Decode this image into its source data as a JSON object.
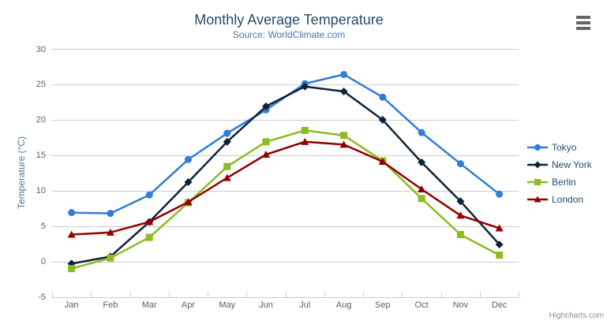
{
  "header": {
    "title": "Monthly Average Temperature",
    "subtitle": "Source: WorldClimate.com"
  },
  "toolbar": {
    "export_menu_icon": "hamburger-icon"
  },
  "credits": {
    "label": "Highcharts.com"
  },
  "theme": {
    "background": "#ffffff",
    "title_color": "#274b6d",
    "subtitle_color": "#4d759e",
    "axis_label_color": "#606060",
    "axis_title_color": "#4d759e",
    "grid_line_color": "#cccccc",
    "axis_line_color": "#c0d0e0",
    "legend_text_color": "#274b6d",
    "credits_color": "#909090",
    "burger_color": "#666666"
  },
  "chart_data": {
    "type": "line",
    "title": "Monthly Average Temperature",
    "subtitle": "Source: WorldClimate.com",
    "categories": [
      "Jan",
      "Feb",
      "Mar",
      "Apr",
      "May",
      "Jun",
      "Jul",
      "Aug",
      "Sep",
      "Oct",
      "Nov",
      "Dec"
    ],
    "series": [
      {
        "name": "Tokyo",
        "color": "#2f7ed8",
        "marker": "circle",
        "values": [
          7.0,
          6.9,
          9.5,
          14.5,
          18.2,
          21.5,
          25.2,
          26.5,
          23.3,
          18.3,
          13.9,
          9.6
        ]
      },
      {
        "name": "New York",
        "color": "#0d233a",
        "marker": "diamond",
        "values": [
          -0.2,
          0.8,
          5.7,
          11.3,
          17.0,
          22.0,
          24.8,
          24.1,
          20.1,
          14.1,
          8.6,
          2.5
        ]
      },
      {
        "name": "Berlin",
        "color": "#8bbc21",
        "marker": "square",
        "values": [
          -0.9,
          0.6,
          3.5,
          8.4,
          13.5,
          17.0,
          18.6,
          17.9,
          14.3,
          9.0,
          3.9,
          1.0
        ]
      },
      {
        "name": "London",
        "color": "#910000",
        "marker": "triangle",
        "values": [
          3.9,
          4.2,
          5.7,
          8.5,
          11.9,
          15.2,
          17.0,
          16.6,
          14.2,
          10.3,
          6.6,
          4.8
        ]
      }
    ],
    "xlabel": "",
    "ylabel": "Temperature (°C)",
    "ylim": [
      -5,
      30
    ],
    "ytick_step": 5,
    "grid": true,
    "legend_position": "right"
  }
}
